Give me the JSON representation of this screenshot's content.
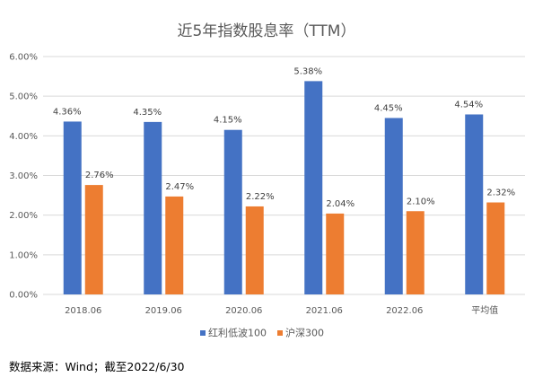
{
  "chart_data": {
    "type": "bar",
    "title": "近5年指数股息率（TTM）",
    "categories": [
      "2018.06",
      "2019.06",
      "2020.06",
      "2021.06",
      "2022.06",
      "平均值"
    ],
    "series": [
      {
        "name": "红利低波100",
        "color": "#4472C4",
        "values": [
          4.36,
          4.35,
          4.15,
          5.38,
          4.45,
          4.54
        ]
      },
      {
        "name": "沪深300",
        "color": "#ED7D31",
        "values": [
          2.76,
          2.47,
          2.22,
          2.04,
          2.1,
          2.32
        ]
      }
    ],
    "value_suffix": "%",
    "ylim": [
      0,
      6
    ],
    "yticks": [
      "0.00%",
      "1.00%",
      "2.00%",
      "3.00%",
      "4.00%",
      "5.00%",
      "6.00%"
    ],
    "grid": true,
    "legend_position": "bottom"
  },
  "source_note": "数据来源：Wind；截至2022/6/30"
}
